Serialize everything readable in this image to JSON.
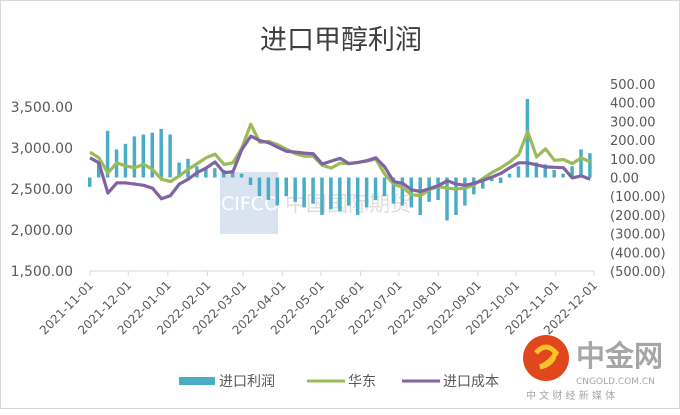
{
  "chart_data": {
    "type": "bar+line",
    "title": "进口甲醇利润",
    "left_axis": {
      "ticks": [
        "1,500.00",
        "2,000.00",
        "2,500.00",
        "3,000.00",
        "3,500.00"
      ],
      "range": [
        1500,
        3500
      ]
    },
    "right_axis": {
      "ticks": [
        "500.00",
        "400.00",
        "300.00",
        "200.00",
        "100.00",
        "0.00",
        "(100.00)",
        "(200.00)",
        "(300.00)",
        "(400.00)",
        "(500.00)"
      ],
      "range": [
        -500,
        500
      ]
    },
    "x_ticks": [
      "2021-11-01",
      "2021-12-01",
      "2022-01-01",
      "2022-02-01",
      "2022-03-01",
      "2022-04-01",
      "2022-05-01",
      "2022-06-01",
      "2022-07-01",
      "2022-08-01",
      "2022-09-01",
      "2022-10-01",
      "2022-11-01",
      "2022-12-01"
    ],
    "x_range": [
      "2021-11-01",
      "2022-12-01"
    ],
    "dates": [
      "2021-11-01",
      "2021-11-08",
      "2021-11-15",
      "2021-11-22",
      "2021-11-29",
      "2021-12-06",
      "2021-12-13",
      "2021-12-20",
      "2021-12-27",
      "2022-01-03",
      "2022-01-10",
      "2022-01-17",
      "2022-01-24",
      "2022-01-31",
      "2022-02-07",
      "2022-02-14",
      "2022-02-21",
      "2022-02-28",
      "2022-03-07",
      "2022-03-14",
      "2022-03-21",
      "2022-03-28",
      "2022-04-04",
      "2022-04-11",
      "2022-04-18",
      "2022-04-25",
      "2022-05-02",
      "2022-05-09",
      "2022-05-16",
      "2022-05-23",
      "2022-05-30",
      "2022-06-06",
      "2022-06-13",
      "2022-06-20",
      "2022-06-27",
      "2022-07-04",
      "2022-07-11",
      "2022-07-18",
      "2022-07-25",
      "2022-08-01",
      "2022-08-08",
      "2022-08-15",
      "2022-08-22",
      "2022-08-29",
      "2022-09-05",
      "2022-09-12",
      "2022-09-19",
      "2022-09-26",
      "2022-10-03",
      "2022-10-10",
      "2022-10-17",
      "2022-10-24",
      "2022-10-31",
      "2022-11-07",
      "2022-11-14",
      "2022-11-21",
      "2022-11-28"
    ],
    "series": [
      {
        "name": "进口利润",
        "type": "bar",
        "axis": "right",
        "color": "#4BACC6",
        "values": [
          -50,
          80,
          250,
          150,
          180,
          220,
          230,
          240,
          260,
          230,
          80,
          100,
          60,
          50,
          50,
          40,
          40,
          20,
          -40,
          -100,
          -120,
          -150,
          -100,
          -130,
          -160,
          -140,
          -200,
          -170,
          -180,
          -150,
          -200,
          -160,
          -120,
          -100,
          -140,
          -150,
          -160,
          -200,
          -130,
          -120,
          -230,
          -200,
          -150,
          -90,
          -60,
          -20,
          -30,
          20,
          60,
          420,
          80,
          70,
          40,
          20,
          60,
          150,
          130
        ]
      },
      {
        "name": "华东",
        "type": "line",
        "axis": "left",
        "color": "#9BBB59",
        "values": [
          2950,
          2880,
          2695,
          2820,
          2780,
          2760,
          2800,
          2740,
          2620,
          2590,
          2660,
          2740,
          2810,
          2880,
          2925,
          2800,
          2820,
          3000,
          3290,
          3070,
          3080,
          3040,
          2985,
          2930,
          2900,
          2900,
          2790,
          2755,
          2815,
          2808,
          2825,
          2840,
          2865,
          2680,
          2560,
          2520,
          2430,
          2420,
          2490,
          2530,
          2510,
          2500,
          2510,
          2550,
          2630,
          2700,
          2760,
          2830,
          2920,
          3200,
          2890,
          2990,
          2850,
          2860,
          2810,
          2880,
          2830
        ]
      },
      {
        "name": "进口成本",
        "type": "line",
        "axis": "left",
        "color": "#8064A2",
        "values": [
          2880,
          2820,
          2450,
          2575,
          2575,
          2560,
          2545,
          2510,
          2380,
          2420,
          2560,
          2620,
          2700,
          2755,
          2830,
          2700,
          2710,
          2980,
          3145,
          3090,
          3065,
          3010,
          2960,
          2950,
          2938,
          2930,
          2805,
          2840,
          2875,
          2810,
          2825,
          2845,
          2880,
          2770,
          2590,
          2570,
          2490,
          2470,
          2505,
          2540,
          2600,
          2560,
          2545,
          2570,
          2605,
          2645,
          2690,
          2760,
          2820,
          2820,
          2795,
          2770,
          2765,
          2760,
          2635,
          2660,
          2620
        ]
      }
    ],
    "legend_position": "bottom",
    "grid": false
  },
  "watermark": {
    "text_en": "CIFCO",
    "text_cn": "中国国际期货"
  },
  "logo": {
    "name": "中金网",
    "domain": "CNGOLD.COM.CN",
    "tagline": "中 文 财 经 新 媒 体"
  }
}
